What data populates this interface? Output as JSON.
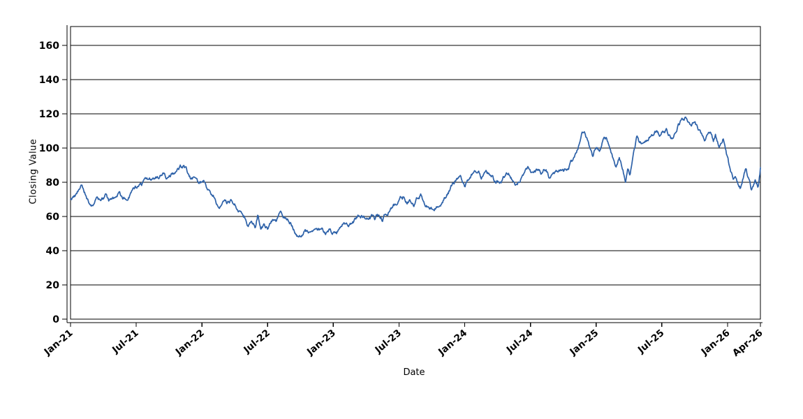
{
  "chart_data": {
    "type": "line",
    "title": "",
    "xlabel": "Date",
    "ylabel": "Closing Value",
    "legend": "none",
    "grid": "horizontal-only",
    "background": "#ffffff",
    "axis_color": "#000000",
    "grid_color": "#000000",
    "ylim": [
      0,
      171
    ],
    "xlim_months": [
      0,
      63
    ],
    "y_ticks": [
      0,
      20,
      40,
      60,
      80,
      100,
      120,
      140,
      160
    ],
    "x_ticks": {
      "labels": [
        "Jan-21",
        "Jul-21",
        "Jan-22",
        "Jul-22",
        "Jan-23",
        "Jul-23",
        "Jan-24",
        "Jul-24",
        "Jan-25",
        "Jul-25",
        "Jan-26",
        "Apr-26"
      ],
      "months": [
        0,
        6,
        12,
        18,
        24,
        30,
        36,
        42,
        48,
        54,
        60,
        63
      ]
    },
    "series": [
      {
        "name": "Closing Value",
        "color": "#2d61a8",
        "style": "jagged daily line",
        "anchors_month_value": [
          [
            0,
            70
          ],
          [
            0.4,
            71.5
          ],
          [
            1,
            77
          ],
          [
            1.3,
            73.5
          ],
          [
            1.6,
            69.5
          ],
          [
            2,
            66
          ],
          [
            2.4,
            71
          ],
          [
            2.8,
            68
          ],
          [
            3.2,
            71.5
          ],
          [
            3.5,
            67.5
          ],
          [
            4,
            70
          ],
          [
            4.4,
            73.5
          ],
          [
            4.8,
            70.5
          ],
          [
            5.2,
            72
          ],
          [
            5.6,
            74.5
          ],
          [
            6,
            76
          ],
          [
            6.5,
            78.5
          ],
          [
            7,
            80.5
          ],
          [
            7.5,
            82
          ],
          [
            8,
            83.5
          ],
          [
            8.4,
            85.5
          ],
          [
            8.8,
            82.5
          ],
          [
            9.2,
            84
          ],
          [
            9.6,
            86
          ],
          [
            10,
            88
          ],
          [
            10.3,
            89
          ],
          [
            10.6,
            87
          ],
          [
            11,
            81
          ],
          [
            11.3,
            83
          ],
          [
            11.6,
            79.5
          ],
          [
            12,
            80.5
          ],
          [
            12.4,
            77
          ],
          [
            12.8,
            73
          ],
          [
            13.2,
            71
          ],
          [
            13.6,
            64.5
          ],
          [
            13.9,
            69
          ],
          [
            14.3,
            67
          ],
          [
            14.7,
            69.5
          ],
          [
            15.1,
            66
          ],
          [
            15.5,
            62.5
          ],
          [
            15.9,
            60
          ],
          [
            16.2,
            53.5
          ],
          [
            16.5,
            57.5
          ],
          [
            16.9,
            54
          ],
          [
            17.1,
            60.5
          ],
          [
            17.4,
            51.5
          ],
          [
            17.7,
            55.5
          ],
          [
            18,
            53
          ],
          [
            18.4,
            57
          ],
          [
            18.8,
            54.5
          ],
          [
            19.2,
            63
          ],
          [
            19.5,
            59.5
          ],
          [
            19.9,
            57.5
          ],
          [
            20.3,
            54
          ],
          [
            20.7,
            49
          ],
          [
            21,
            48.5
          ],
          [
            21.4,
            52.5
          ],
          [
            21.8,
            49.5
          ],
          [
            22.2,
            52
          ],
          [
            22.5,
            50.5
          ],
          [
            22.9,
            53.5
          ],
          [
            23.3,
            50.5
          ],
          [
            23.6,
            53
          ],
          [
            24,
            50.5
          ],
          [
            24.3,
            48.5
          ],
          [
            24.6,
            53
          ],
          [
            25,
            58
          ],
          [
            25.4,
            55
          ],
          [
            25.8,
            56.5
          ],
          [
            26.2,
            59.5
          ],
          [
            26.6,
            60
          ],
          [
            27,
            59.5
          ],
          [
            27.5,
            60.5
          ],
          [
            27.8,
            57
          ],
          [
            28.1,
            60
          ],
          [
            28.5,
            58
          ],
          [
            28.9,
            62
          ],
          [
            29.3,
            65.5
          ],
          [
            29.7,
            67
          ],
          [
            30.1,
            70.5
          ],
          [
            30.4,
            72
          ],
          [
            30.7,
            68.5
          ],
          [
            31,
            71
          ],
          [
            31.3,
            66.5
          ],
          [
            31.7,
            70
          ],
          [
            32,
            72
          ],
          [
            32.3,
            67
          ],
          [
            32.7,
            66
          ],
          [
            33.1,
            64.5
          ],
          [
            33.5,
            67
          ],
          [
            34,
            70.5
          ],
          [
            34.4,
            73.5
          ],
          [
            34.8,
            78
          ],
          [
            35.2,
            81.5
          ],
          [
            35.6,
            83.5
          ],
          [
            36,
            78.5
          ],
          [
            36.4,
            83
          ],
          [
            36.8,
            86
          ],
          [
            37.2,
            87.5
          ],
          [
            37.5,
            84
          ],
          [
            38,
            86
          ],
          [
            38.4,
            83.5
          ],
          [
            38.8,
            80
          ],
          [
            39.2,
            80.5
          ],
          [
            39.6,
            83
          ],
          [
            40,
            85
          ],
          [
            40.3,
            83
          ],
          [
            40.7,
            78.5
          ],
          [
            41.1,
            82
          ],
          [
            41.5,
            86
          ],
          [
            41.8,
            88.5
          ],
          [
            42.2,
            84.5
          ],
          [
            42.6,
            86.5
          ],
          [
            43,
            85
          ],
          [
            43.4,
            87.5
          ],
          [
            43.8,
            82
          ],
          [
            44.2,
            85.5
          ],
          [
            44.6,
            87
          ],
          [
            45,
            85.5
          ],
          [
            45.4,
            88.5
          ],
          [
            45.8,
            92
          ],
          [
            46.1,
            96
          ],
          [
            46.4,
            101
          ],
          [
            46.7,
            110.5
          ],
          [
            47,
            108
          ],
          [
            47.3,
            103
          ],
          [
            47.7,
            95.5
          ],
          [
            48,
            101.5
          ],
          [
            48.4,
            99.5
          ],
          [
            48.7,
            107.5
          ],
          [
            49,
            105
          ],
          [
            49.4,
            97
          ],
          [
            49.8,
            90
          ],
          [
            50.1,
            95.5
          ],
          [
            50.4,
            87.5
          ],
          [
            50.7,
            80.5
          ],
          [
            50.9,
            88
          ],
          [
            51.1,
            83.5
          ],
          [
            51.4,
            96
          ],
          [
            51.7,
            105
          ],
          [
            52,
            102
          ],
          [
            52.4,
            103.5
          ],
          [
            52.8,
            106.5
          ],
          [
            53.2,
            108
          ],
          [
            53.5,
            110
          ],
          [
            53.8,
            108
          ],
          [
            54.1,
            110.5
          ],
          [
            54.4,
            111.5
          ],
          [
            54.8,
            105.5
          ],
          [
            55.1,
            106
          ],
          [
            55.5,
            113
          ],
          [
            55.8,
            115.5
          ],
          [
            56.1,
            117.5
          ],
          [
            56.4,
            114.5
          ],
          [
            56.7,
            113.5
          ],
          [
            57,
            116.5
          ],
          [
            57.3,
            111
          ],
          [
            57.6,
            107.5
          ],
          [
            57.9,
            102.5
          ],
          [
            58.2,
            109
          ],
          [
            58.5,
            110
          ],
          [
            58.7,
            104.5
          ],
          [
            58.9,
            107.5
          ],
          [
            59.2,
            101
          ],
          [
            59.6,
            107
          ],
          [
            59.9,
            97
          ],
          [
            60.2,
            88
          ],
          [
            60.5,
            81
          ],
          [
            60.7,
            85
          ],
          [
            60.9,
            80.5
          ],
          [
            61.2,
            76.5
          ],
          [
            61.5,
            85.5
          ],
          [
            61.7,
            87.5
          ],
          [
            62,
            80
          ],
          [
            62.2,
            74.5
          ],
          [
            62.5,
            81
          ],
          [
            62.8,
            77.5
          ],
          [
            63,
            88.5
          ]
        ]
      }
    ]
  }
}
